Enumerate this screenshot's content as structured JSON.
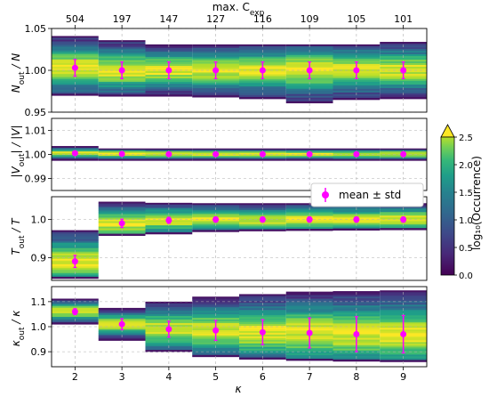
{
  "chart_data": {
    "type": "heatmap",
    "kappa": [
      2,
      3,
      4,
      5,
      6,
      7,
      8,
      9
    ],
    "top_axis": {
      "label": "max. C_exp",
      "label_main": "max. C",
      "label_sub": "exp",
      "values": [
        "504",
        "197",
        "147",
        "127",
        "116",
        "109",
        "105",
        "101"
      ]
    },
    "xlabel": "κ",
    "x_ticks": [
      "2",
      "3",
      "4",
      "5",
      "6",
      "7",
      "8",
      "9"
    ],
    "panels": [
      {
        "ylabel": "N_out / N",
        "ylim": [
          0.95,
          1.05
        ],
        "y_ticks": [
          0.95,
          1.0,
          1.05
        ],
        "y_tick_labels": [
          "0.95",
          "1.00",
          "1.05"
        ],
        "mean": [
          1.003,
          1.0,
          1.0,
          1.0,
          1.0,
          1.0,
          1.0,
          1.0
        ],
        "std": [
          0.01,
          0.01,
          0.01,
          0.01,
          0.01,
          0.01,
          0.01,
          0.01
        ],
        "range_lo": [
          0.97,
          0.969,
          0.969,
          0.968,
          0.966,
          0.961,
          0.965,
          0.966
        ],
        "range_hi": [
          1.041,
          1.036,
          1.031,
          1.031,
          1.031,
          1.031,
          1.031,
          1.034
        ]
      },
      {
        "ylabel": "|V_out| / |V|",
        "ylim": [
          0.985,
          1.015
        ],
        "y_ticks": [
          0.99,
          1.0,
          1.01
        ],
        "y_tick_labels": [
          "0.99",
          "1.00",
          "1.01"
        ],
        "mean": [
          1.0005,
          1.0002,
          1.0001,
          1.0001,
          1.0001,
          1.0001,
          1.0001,
          1.0001
        ],
        "std": [
          0.0004,
          0.0004,
          0.0004,
          0.0004,
          0.0004,
          0.0004,
          0.0004,
          0.0004
        ],
        "range_lo": [
          0.9975,
          0.9975,
          0.9975,
          0.9975,
          0.9975,
          0.9975,
          0.9975,
          0.9975
        ],
        "range_hi": [
          1.0035,
          1.0025,
          1.0025,
          1.0025,
          1.0025,
          1.0025,
          1.0025,
          1.0025
        ]
      },
      {
        "ylabel": "T_out / T",
        "ylim": [
          0.84,
          1.06
        ],
        "y_ticks": [
          0.9,
          1.0
        ],
        "y_tick_labels": [
          "0.9",
          "1.0"
        ],
        "mean": [
          0.89,
          0.99,
          0.998,
          1.0,
          1.0,
          1.0,
          1.0,
          1.0
        ],
        "std": [
          0.016,
          0.011,
          0.008,
          0.007,
          0.007,
          0.007,
          0.007,
          0.007
        ],
        "range_lo": [
          0.845,
          0.958,
          0.962,
          0.968,
          0.97,
          0.971,
          0.972,
          0.973
        ],
        "range_hi": [
          0.972,
          1.047,
          1.044,
          1.043,
          1.043,
          1.043,
          1.043,
          1.043
        ]
      },
      {
        "ylabel": "κ_out / κ",
        "ylim": [
          0.84,
          1.16
        ],
        "y_ticks": [
          0.9,
          1.0,
          1.1
        ],
        "y_tick_labels": [
          "0.9",
          "1.0",
          "1.1"
        ],
        "mean": [
          1.06,
          1.01,
          0.99,
          0.985,
          0.978,
          0.975,
          0.97,
          0.97
        ],
        "std": [
          0.012,
          0.022,
          0.032,
          0.04,
          0.05,
          0.06,
          0.07,
          0.075
        ],
        "range_lo": [
          1.01,
          0.945,
          0.9,
          0.88,
          0.87,
          0.865,
          0.862,
          0.86
        ],
        "range_hi": [
          1.112,
          1.075,
          1.1,
          1.12,
          1.13,
          1.14,
          1.142,
          1.145
        ]
      }
    ],
    "legend": {
      "label": "mean ± std",
      "placement": "right of panel 2"
    },
    "colorbar": {
      "label": "log₁₀(Occurrence)",
      "range": [
        0.0,
        2.5
      ],
      "ticks": [
        "0.0",
        "0.5",
        "1.0",
        "1.5",
        "2.0",
        "2.5"
      ],
      "colormap": "viridis",
      "extend": "max"
    },
    "marker_color": "#ff00ff",
    "grid": true
  }
}
